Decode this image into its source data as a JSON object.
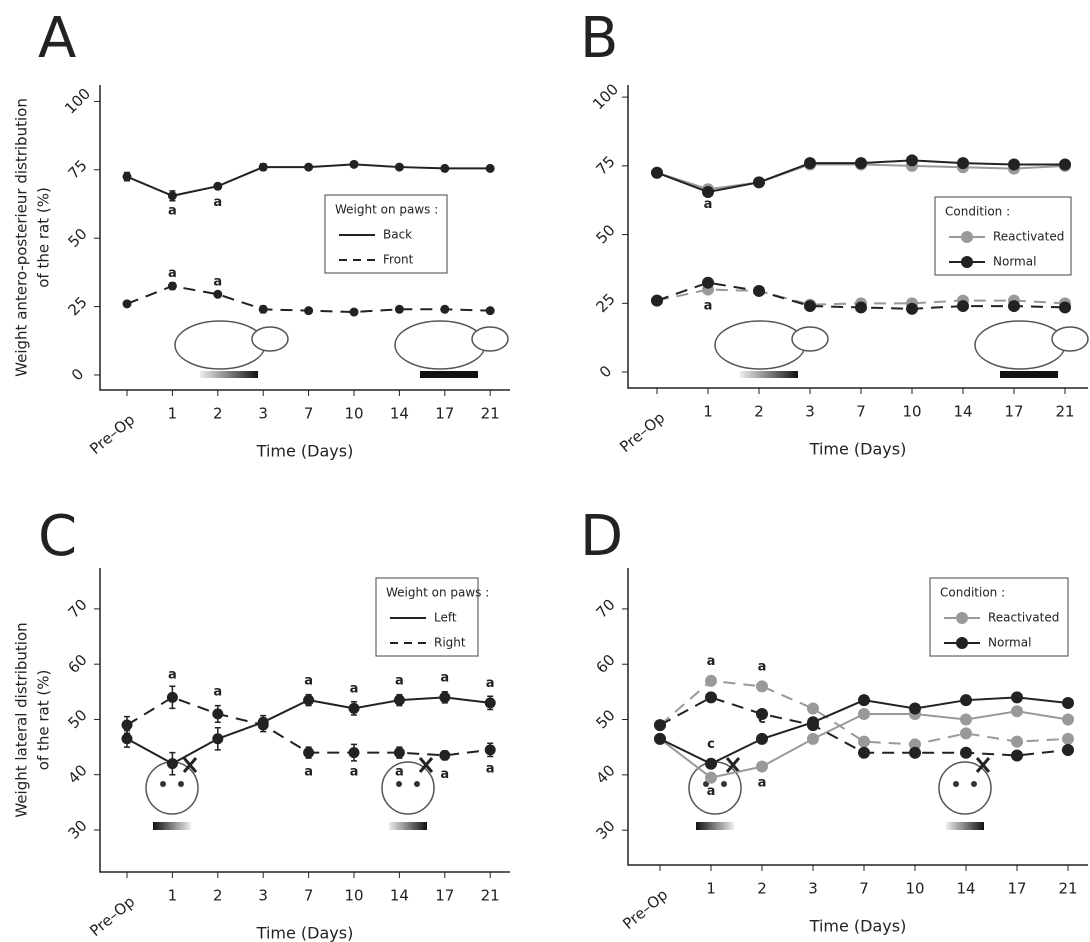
{
  "chart_data": [
    {
      "type": "line",
      "title": "A",
      "ylabel": [
        "Weight antero-posterieur distribution",
        "of the rat (%)"
      ],
      "xlabel": "Time (Days)",
      "categories": [
        "Pre–Op",
        "1",
        "2",
        "3",
        "7",
        "10",
        "14",
        "17",
        "21"
      ],
      "ylim": [
        -5.5,
        106
      ],
      "yticks": [
        0,
        25,
        50,
        75,
        100
      ],
      "legend_title": "Weight on paws :",
      "legend_marker": false,
      "series": [
        {
          "name": "Back",
          "color": "#222222",
          "dash": false,
          "values": [
            72.5,
            65.5,
            69,
            76,
            76,
            77,
            76,
            75.5,
            75.5
          ],
          "errors": [
            1.5,
            1.8,
            1,
            1.2,
            0.8,
            0.8,
            0.8,
            0.8,
            0.8
          ]
        },
        {
          "name": "Front",
          "color": "#222222",
          "dash": true,
          "values": [
            26,
            32.5,
            29.5,
            24,
            23.5,
            23,
            24,
            24,
            23.5
          ],
          "errors": [
            0.8,
            1.2,
            0.8,
            1.2,
            0.8,
            0.8,
            0.8,
            0.8,
            0.8
          ]
        }
      ],
      "annotations": [
        {
          "text": "a",
          "category": 1,
          "y": 60,
          "color": "#222222"
        },
        {
          "text": "a",
          "category": 2,
          "y": 63,
          "color": "#222222"
        },
        {
          "text": "a",
          "category": 1,
          "y": 37,
          "color": "#222222"
        },
        {
          "text": "a",
          "category": 2,
          "y": 34,
          "color": "#222222"
        }
      ]
    },
    {
      "type": "line",
      "title": "B",
      "xlabel": "Time (Days)",
      "categories": [
        "Pre–Op",
        "1",
        "2",
        "3",
        "7",
        "10",
        "14",
        "17",
        "21"
      ],
      "ylim": [
        -5.8,
        104.4
      ],
      "yticks": [
        0,
        25,
        50,
        75,
        100
      ],
      "legend_title": "Condition :",
      "legend_marker": true,
      "series": [
        {
          "name": "Reactivated",
          "color": "#999999",
          "dash": false,
          "values": [
            72.5,
            66.5,
            69,
            75.5,
            75.5,
            75,
            74.5,
            74,
            75
          ]
        },
        {
          "color": "#999999",
          "dash": true,
          "values": [
            26,
            30,
            29.5,
            24.5,
            25,
            25,
            26,
            26,
            25
          ]
        },
        {
          "name": "Normal",
          "color": "#222222",
          "dash": false,
          "values": [
            72.5,
            65.5,
            69,
            76,
            76,
            77,
            76,
            75.5,
            75.5
          ]
        },
        {
          "color": "#222222",
          "dash": true,
          "values": [
            26,
            32.5,
            29.5,
            24,
            23.5,
            23,
            24,
            24,
            23.5
          ]
        }
      ],
      "annotations": [
        {
          "text": "a",
          "category": 1,
          "y": 61,
          "color": "#999999"
        },
        {
          "text": "a",
          "category": 1,
          "y": 24,
          "color": "#999999"
        }
      ]
    },
    {
      "type": "line",
      "title": "C",
      "ylabel": [
        "Weight lateral distribution",
        "of the rat (%)"
      ],
      "xlabel": "Time (Days)",
      "categories": [
        "Pre–Op",
        "1",
        "2",
        "3",
        "7",
        "10",
        "14",
        "17",
        "21"
      ],
      "ylim": [
        22.4,
        77.4
      ],
      "yticks": [
        30,
        40,
        50,
        60,
        70
      ],
      "legend_title": "Weight on paws :",
      "legend_marker": false,
      "series": [
        {
          "name": "Left",
          "color": "#222222",
          "dash": false,
          "values": [
            46.5,
            42,
            46.5,
            49.5,
            53.5,
            52,
            53.5,
            54,
            53
          ],
          "errors": [
            1.5,
            2,
            2,
            1.2,
            1,
            1.2,
            1,
            1,
            1.2
          ]
        },
        {
          "name": "Right",
          "color": "#222222",
          "dash": true,
          "values": [
            49,
            54,
            51,
            49,
            44,
            44,
            44,
            43.5,
            44.5
          ],
          "errors": [
            1.5,
            2,
            1.5,
            1.2,
            1,
            1.5,
            1,
            0.8,
            1.2
          ]
        }
      ],
      "annotations": [
        {
          "text": "a",
          "category": 1,
          "y": 58,
          "color": "#222222"
        },
        {
          "text": "a",
          "category": 2,
          "y": 55,
          "color": "#222222"
        },
        {
          "text": "a",
          "category": 4,
          "y": 57,
          "color": "#222222"
        },
        {
          "text": "a",
          "category": 5,
          "y": 55.5,
          "color": "#222222"
        },
        {
          "text": "a",
          "category": 6,
          "y": 57,
          "color": "#222222"
        },
        {
          "text": "a",
          "category": 7,
          "y": 57.5,
          "color": "#222222"
        },
        {
          "text": "a",
          "category": 8,
          "y": 56.5,
          "color": "#222222"
        },
        {
          "text": "a",
          "category": 4,
          "y": 40.5,
          "color": "#222222"
        },
        {
          "text": "a",
          "category": 5,
          "y": 40.5,
          "color": "#222222"
        },
        {
          "text": "a",
          "category": 6,
          "y": 40.5,
          "color": "#222222"
        },
        {
          "text": "a",
          "category": 7,
          "y": 40,
          "color": "#222222"
        },
        {
          "text": "a",
          "category": 8,
          "y": 41,
          "color": "#222222"
        }
      ]
    },
    {
      "type": "line",
      "title": "D",
      "xlabel": "Time (Days)",
      "categories": [
        "Pre–Op",
        "1",
        "2",
        "3",
        "7",
        "10",
        "14",
        "17",
        "21"
      ],
      "ylim": [
        23.7,
        77.4
      ],
      "yticks": [
        30,
        40,
        50,
        60,
        70
      ],
      "legend_title": "Condition :",
      "legend_marker": true,
      "series": [
        {
          "name": "Reactivated",
          "color": "#999999",
          "dash": false,
          "values": [
            46.5,
            39.5,
            41.5,
            46.5,
            51,
            51,
            50,
            51.5,
            50
          ]
        },
        {
          "color": "#999999",
          "dash": true,
          "values": [
            49,
            57,
            56,
            52,
            46,
            45.5,
            47.5,
            46,
            46.5
          ]
        },
        {
          "name": "Normal",
          "color": "#222222",
          "dash": false,
          "values": [
            46.5,
            42,
            46.5,
            49.5,
            53.5,
            52,
            53.5,
            54,
            53
          ]
        },
        {
          "color": "#222222",
          "dash": true,
          "values": [
            49,
            54,
            51,
            49,
            44,
            44,
            44,
            43.5,
            44.5
          ]
        }
      ],
      "annotations": [
        {
          "text": "a",
          "category": 1,
          "y": 60.5,
          "color": "#999999"
        },
        {
          "text": "a",
          "category": 1,
          "y": 37,
          "color": "#999999"
        },
        {
          "text": "a",
          "category": 2,
          "y": 59.5,
          "color": "#999999"
        },
        {
          "text": "a",
          "category": 2,
          "y": 38.5,
          "color": "#999999"
        },
        {
          "text": "c",
          "category": 1,
          "y": 45.5,
          "color": "#222222"
        },
        {
          "text": "c",
          "category": 2,
          "y": 50,
          "color": "#222222"
        }
      ]
    }
  ]
}
